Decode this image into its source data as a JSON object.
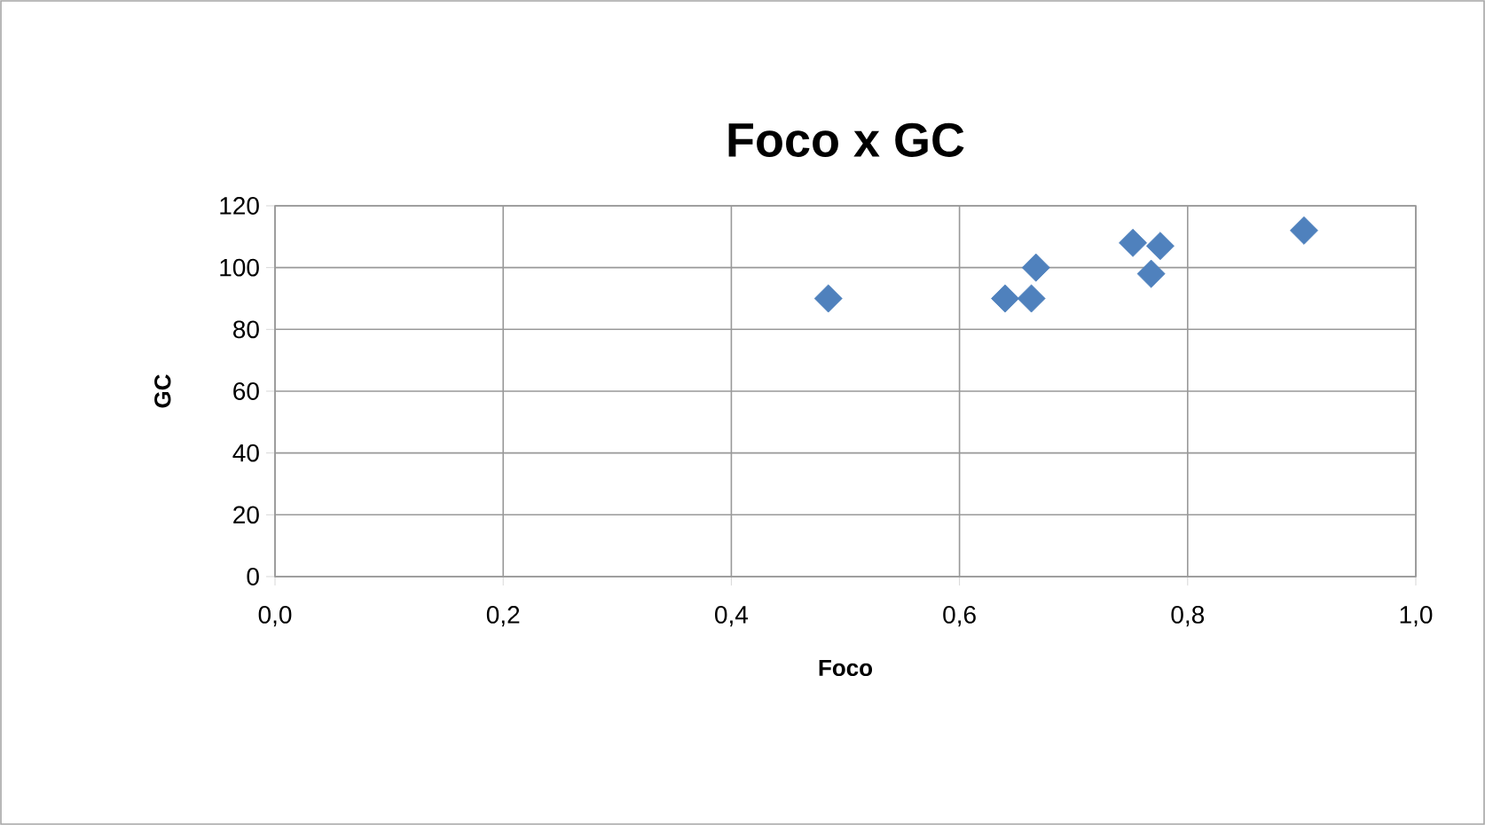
{
  "chart_data": {
    "type": "scatter",
    "title": "Foco x GC",
    "xlabel": "Foco",
    "ylabel": "GC",
    "x": [
      0.485,
      0.64,
      0.663,
      0.667,
      0.752,
      0.776,
      0.768,
      0.902
    ],
    "values": [
      90,
      90,
      90,
      100,
      108,
      107,
      98,
      112
    ],
    "color": "#4f81bd",
    "marker": "diamond",
    "grid": true,
    "xlim": [
      0,
      1
    ],
    "xticks": [
      {
        "value": 0,
        "label": "0,0"
      },
      {
        "value": 0.2,
        "label": "0,2"
      },
      {
        "value": 0.4,
        "label": "0,4"
      },
      {
        "value": 0.6,
        "label": "0,6"
      },
      {
        "value": 0.8,
        "label": "0,8"
      },
      {
        "value": 1,
        "label": "1,0"
      }
    ],
    "ylim": [
      0,
      120
    ],
    "yticks": [
      0,
      20,
      40,
      60,
      80,
      100,
      120
    ]
  }
}
